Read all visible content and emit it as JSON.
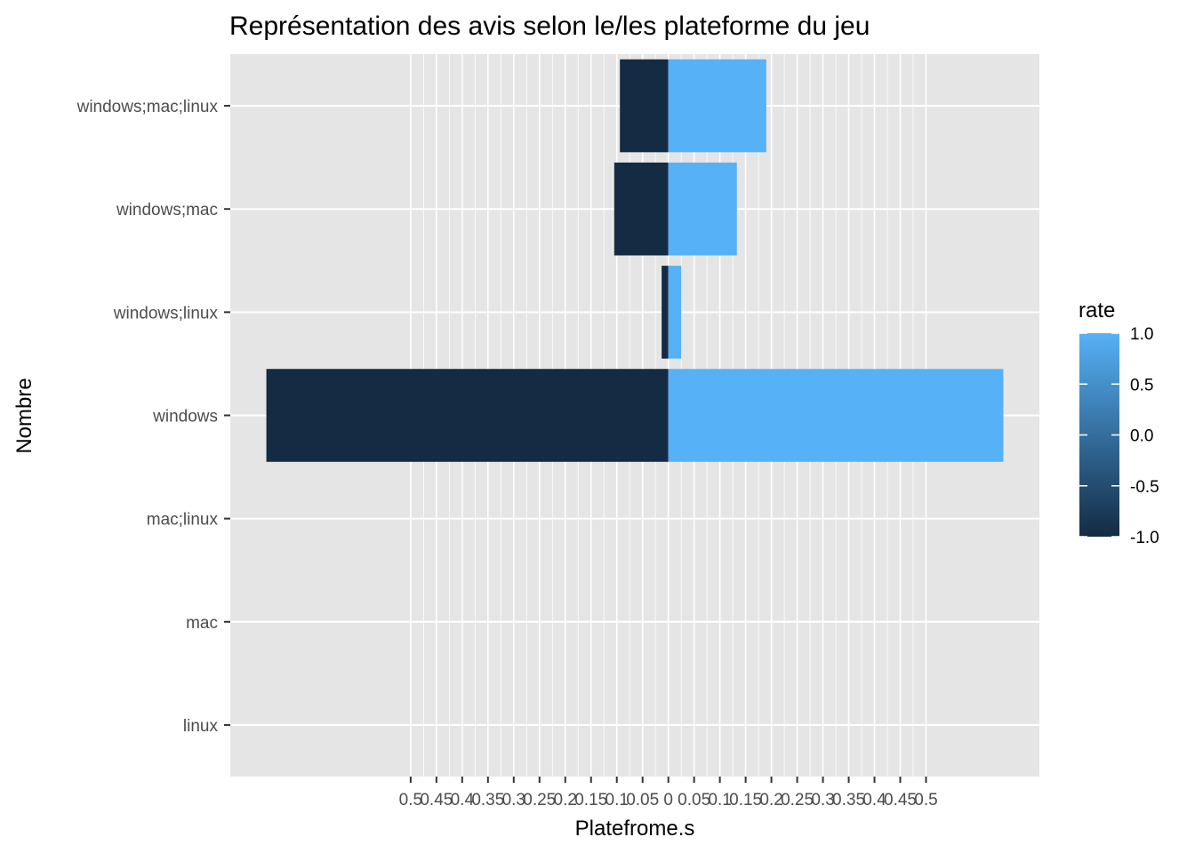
{
  "chart_data": {
    "type": "bar",
    "orientation": "horizontal",
    "title": "Représentation des avis selon le/les plateforme du jeu",
    "xlabel": "Platefrome.s",
    "ylabel": "Nombre",
    "categories": [
      "windows;mac;linux",
      "windows;mac",
      "windows;linux",
      "windows",
      "mac;linux",
      "mac",
      "linux"
    ],
    "series": [
      {
        "rate": -1.0,
        "values": [
          -0.094,
          -0.105,
          -0.013,
          -0.78,
          0,
          0,
          0
        ]
      },
      {
        "rate": 1.0,
        "values": [
          0.19,
          0.133,
          0.025,
          0.65,
          0,
          0,
          0
        ]
      }
    ],
    "x_ticks": [
      -0.5,
      -0.45,
      -0.4,
      -0.35,
      -0.3,
      -0.25,
      -0.2,
      -0.15,
      -0.1,
      -0.05,
      0,
      0.05,
      0.1,
      0.15,
      0.2,
      0.25,
      0.3,
      0.35,
      0.4,
      0.45,
      0.5
    ],
    "x_tick_labels": [
      "0.5",
      "0.45",
      "0.4",
      "0.35",
      "0.3",
      "0.25",
      "0.2",
      "0.15",
      "0.1",
      "0.05",
      "0",
      "0.05",
      "0.1",
      "0.15",
      "0.2",
      "0.25",
      "0.3",
      "0.35",
      "0.4",
      "0.45",
      "0.5"
    ],
    "xlim": [
      -0.85,
      0.72
    ],
    "grid": true,
    "legend": {
      "title": "rate",
      "position": "right",
      "type": "colorbar",
      "range": [
        -1.0,
        1.0
      ],
      "tick_values": [
        1.0,
        0.5,
        0.0,
        -0.5,
        -1.0
      ],
      "tick_labels": [
        "1.0",
        "0.5",
        "0.0",
        "-0.5",
        "-1.0"
      ],
      "color_low": "#132b43",
      "color_high": "#56b1f7"
    },
    "colors": {
      "panel": "#e5e5e5",
      "grid": "#ffffff",
      "tick": "#333333",
      "tick_text": "#4d4d4d"
    }
  }
}
